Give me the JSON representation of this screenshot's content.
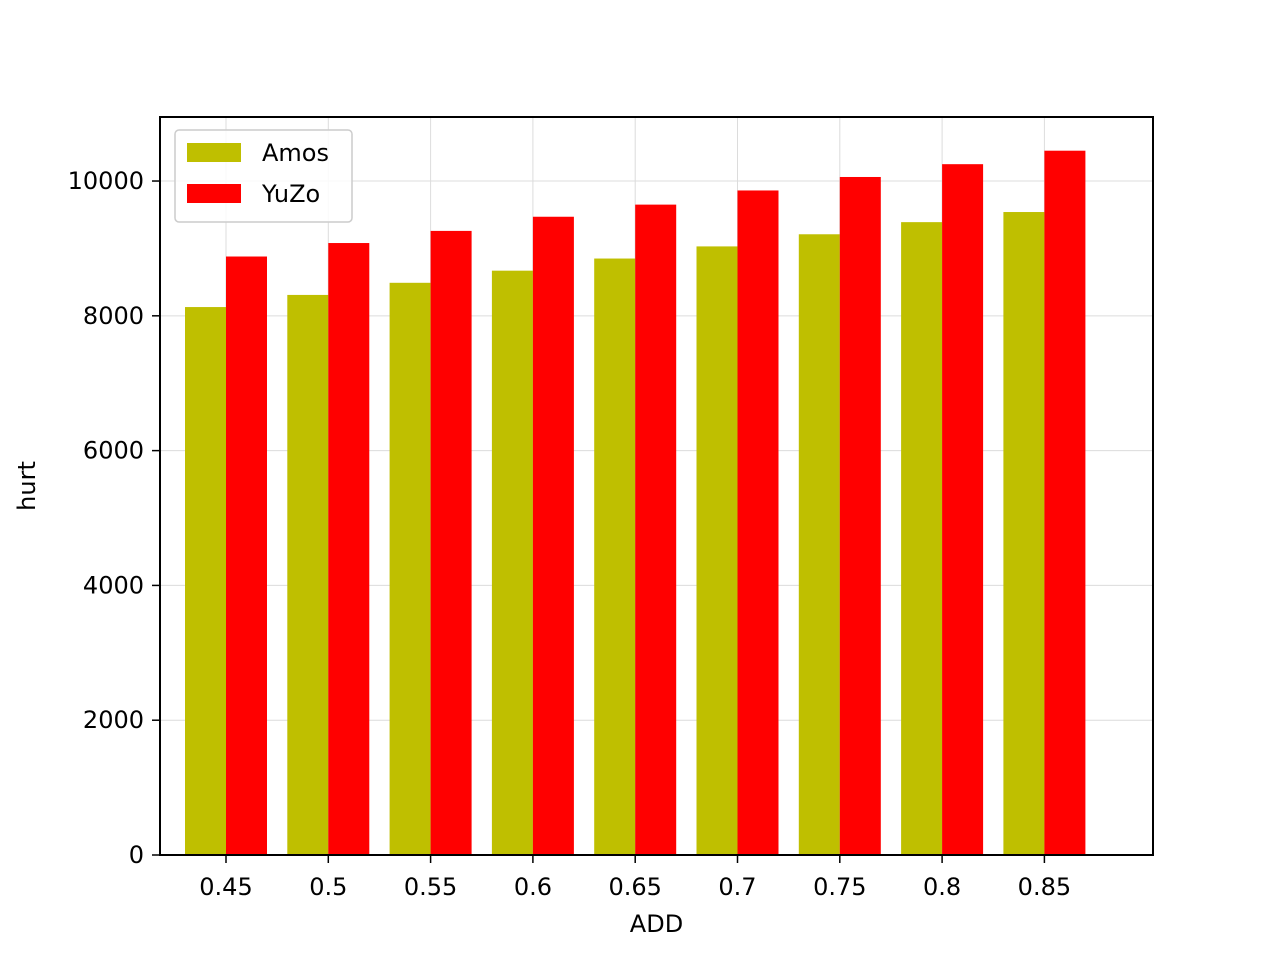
{
  "chart_data": {
    "type": "bar",
    "title": "",
    "xlabel": "ADD",
    "ylabel": "hurt",
    "categories": [
      "0.45",
      "0.5",
      "0.55",
      "0.6",
      "0.65",
      "0.7",
      "0.75",
      "0.8",
      "0.85"
    ],
    "series": [
      {
        "name": "Amos",
        "color": "#bfbf00",
        "values": [
          8130,
          8310,
          8490,
          8670,
          8850,
          9030,
          9210,
          9390,
          9540
        ]
      },
      {
        "name": "YuZo",
        "color": "#ff0000",
        "values": [
          8880,
          9080,
          9260,
          9470,
          9650,
          9860,
          10060,
          10250,
          10450
        ]
      }
    ],
    "ylim": [
      0,
      10950
    ],
    "yticks": [
      0,
      2000,
      4000,
      6000,
      8000,
      10000
    ],
    "grid": true,
    "legend": "top-left"
  }
}
